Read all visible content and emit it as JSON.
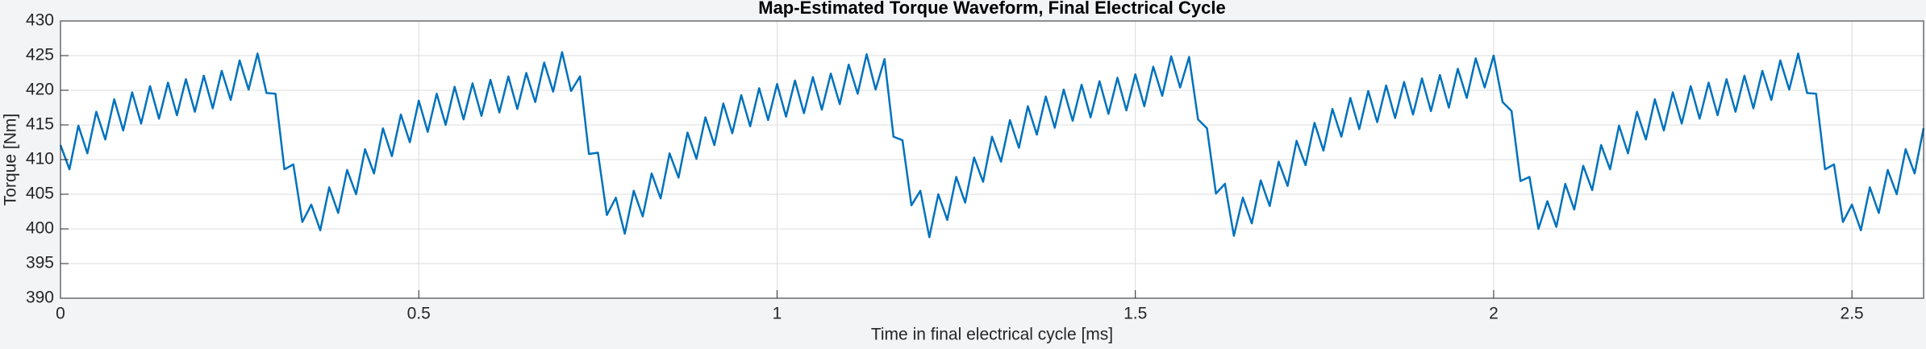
{
  "chart_data": {
    "type": "line",
    "title": "Map-Estimated Torque Waveform, Final Electrical Cycle",
    "x_label": "Time in final electrical cycle [ms]",
    "y_label": "Torque [Nm]",
    "color": "#0072bd",
    "grid": true,
    "xlim": [
      0,
      2.6
    ],
    "xticks": [
      0,
      0.5,
      1,
      1.5,
      2,
      2.5
    ],
    "ylim": [
      390,
      430
    ],
    "yticks": [
      390,
      395,
      400,
      405,
      410,
      415,
      420,
      425,
      430
    ],
    "x": [
      0,
      0.0125,
      0.025,
      0.0375,
      0.05,
      0.0625,
      0.075,
      0.0875,
      0.1,
      0.1125,
      0.125,
      0.1375,
      0.15,
      0.1625,
      0.175,
      0.1875,
      0.2,
      0.2125,
      0.225,
      0.2375,
      0.25,
      0.2625,
      0.275,
      0.2875,
      0.3,
      0.3125,
      0.325,
      0.3375,
      0.35,
      0.3625,
      0.375,
      0.3875,
      0.4,
      0.4125,
      0.425,
      0.4375,
      0.45,
      0.4625,
      0.475,
      0.4875,
      0.5,
      0.5125,
      0.525,
      0.5375,
      0.55,
      0.5625,
      0.575,
      0.5875,
      0.6,
      0.6125,
      0.625,
      0.6375,
      0.65,
      0.6625,
      0.675,
      0.6875,
      0.7,
      0.7125,
      0.725,
      0.7375,
      0.75,
      0.7625,
      0.775,
      0.7875,
      0.8,
      0.8125,
      0.825,
      0.8375,
      0.85,
      0.8625,
      0.875,
      0.8875,
      0.9,
      0.9125,
      0.925,
      0.9375,
      0.95,
      0.9625,
      0.975,
      0.9875,
      1,
      1.0125,
      1.025,
      1.0375,
      1.05,
      1.0625,
      1.075,
      1.0875,
      1.1,
      1.1125,
      1.125,
      1.1375,
      1.15,
      1.1625,
      1.175,
      1.1875,
      1.2,
      1.2125,
      1.225,
      1.2375,
      1.25,
      1.2625,
      1.275,
      1.2875,
      1.3,
      1.3125,
      1.325,
      1.3375,
      1.35,
      1.3625,
      1.375,
      1.3875,
      1.4,
      1.4125,
      1.425,
      1.4375,
      1.45,
      1.4625,
      1.475,
      1.4875,
      1.5,
      1.5125,
      1.525,
      1.5375,
      1.55,
      1.5625,
      1.575,
      1.5875,
      1.6,
      1.6125,
      1.625,
      1.6375,
      1.65,
      1.6625,
      1.675,
      1.6875,
      1.7,
      1.7125,
      1.725,
      1.7375,
      1.75,
      1.7625,
      1.775,
      1.7875,
      1.8,
      1.8125,
      1.825,
      1.8375,
      1.85,
      1.8625,
      1.875,
      1.8875,
      1.9,
      1.9125,
      1.925,
      1.9375,
      1.95,
      1.9625,
      1.975,
      1.9875,
      2,
      2.0125,
      2.025,
      2.0375,
      2.05,
      2.0625,
      2.075,
      2.0875,
      2.1,
      2.1125,
      2.125,
      2.1375,
      2.15,
      2.1625,
      2.175,
      2.1875,
      2.2,
      2.2125,
      2.225,
      2.2375,
      2.25,
      2.2625,
      2.275,
      2.2875,
      2.3,
      2.3125,
      2.325,
      2.3375,
      2.35,
      2.3625,
      2.375,
      2.3875,
      2.4,
      2.4125,
      2.425,
      2.4375,
      2.45,
      2.4625,
      2.475,
      2.4875,
      2.5,
      2.5125,
      2.525,
      2.5375,
      2.55,
      2.5625,
      2.575,
      2.5875,
      2.6
    ],
    "values": [
      412.1,
      408.6,
      414.9,
      410.9,
      416.9,
      412.9,
      418.7,
      414.2,
      419.7,
      415.2,
      420.6,
      415.9,
      421.1,
      416.4,
      421.6,
      416.9,
      422.1,
      417.4,
      422.8,
      418.6,
      424.3,
      420.1,
      425.3,
      419.6,
      419.5,
      408.6,
      409.3,
      401,
      403.5,
      399.8,
      406,
      402.3,
      408.5,
      405,
      411.5,
      408,
      414.5,
      410.5,
      416.5,
      412.5,
      418.5,
      414,
      419.5,
      415,
      420.5,
      415.8,
      421,
      416.3,
      421.5,
      416.8,
      422,
      417.3,
      422.5,
      418.3,
      424,
      419.8,
      425.5,
      419.9,
      422,
      410.8,
      411,
      402,
      404.5,
      399.3,
      405.5,
      401.8,
      408,
      404.4,
      410.9,
      407.4,
      413.9,
      410.1,
      416.1,
      412.1,
      418.1,
      413.8,
      419.3,
      414.8,
      420.3,
      415.7,
      420.9,
      416.2,
      421.4,
      416.7,
      421.9,
      417.2,
      422.4,
      418,
      423.7,
      419.5,
      425.2,
      420.1,
      424.5,
      413.3,
      412.8,
      403.4,
      405.5,
      398.8,
      405,
      401.3,
      407.5,
      403.8,
      410.3,
      406.8,
      413.3,
      409.7,
      415.7,
      411.7,
      417.7,
      413.6,
      419.1,
      414.6,
      420.1,
      415.6,
      420.8,
      416.1,
      421.3,
      416.6,
      421.8,
      417.1,
      422.3,
      417.7,
      423.4,
      419.2,
      424.9,
      420.4,
      424.8,
      415.8,
      414.5,
      405.1,
      406.5,
      399,
      404.5,
      400.8,
      407,
      403.3,
      409.7,
      406.2,
      412.7,
      409.2,
      415.3,
      411.3,
      417.3,
      413.3,
      418.9,
      414.4,
      419.9,
      415.4,
      420.7,
      416,
      421.2,
      416.5,
      421.7,
      417,
      422.2,
      417.5,
      423.1,
      418.9,
      424.6,
      420.4,
      425,
      418.3,
      417,
      406.9,
      407.5,
      400,
      404,
      400.3,
      406.5,
      402.8,
      409.1,
      405.6,
      412.1,
      408.6,
      414.9,
      410.9,
      416.9,
      412.9,
      418.7,
      414.2,
      419.7,
      415.2,
      420.6,
      415.9,
      421.1,
      416.4,
      421.6,
      416.9,
      422.1,
      417.4,
      422.8,
      418.6,
      424.3,
      420.1,
      425.3,
      419.6,
      419.5,
      408.6,
      409.3,
      401,
      403.5,
      399.8,
      406,
      402.3,
      408.5,
      405,
      411.5,
      408,
      414.5
    ]
  }
}
